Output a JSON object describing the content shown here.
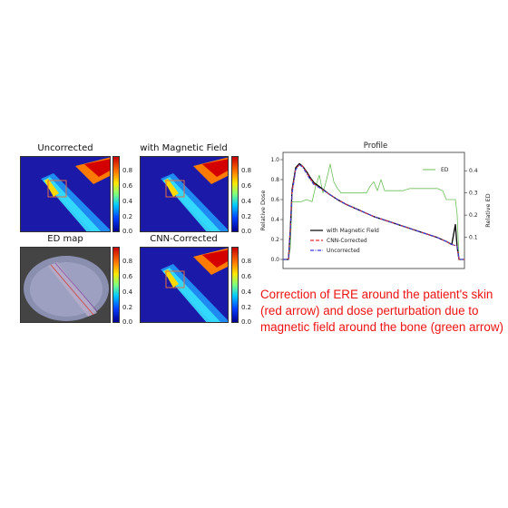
{
  "panels": [
    {
      "title": "Uncorrected",
      "colorbar_ticks": [
        "0.8",
        "0.6",
        "0.4",
        "0.2",
        "0.0"
      ]
    },
    {
      "title": "with Magnetic Field",
      "colorbar_ticks": [
        "0.8",
        "0.6",
        "0.4",
        "0.2",
        "0.0"
      ]
    },
    {
      "title": "ED map",
      "colorbar_ticks": [
        "0.8",
        "0.6",
        "0.4",
        "0.2",
        "0.0"
      ]
    },
    {
      "title": "CNN-Corrected",
      "colorbar_ticks": [
        "0.8",
        "0.6",
        "0.4",
        "0.2",
        "0.0"
      ]
    }
  ],
  "caption": "Correction of ERE around the patient's skin (red arrow) and dose perturbation due to magnetic field around the bone (green arrow)",
  "colors": {
    "with_magnetic_field": "#000000",
    "cnn_corrected": "#e8322e",
    "uncorrected": "#3b3bd6",
    "ed": "#6cbf5a",
    "caption": "#ee1111"
  },
  "chart_data": {
    "type": "line",
    "title": "Profile",
    "xlabel": "",
    "ylabel": "Relative Dose",
    "y2label": "Relative ED",
    "ylim": [
      0.0,
      1.0
    ],
    "y2lim": [
      0.0,
      0.45
    ],
    "yticks": [
      "0.0",
      "0.2",
      "0.4",
      "0.6",
      "0.8",
      "1.0"
    ],
    "y2ticks": [
      "0.1",
      "0.2",
      "0.3",
      "0.4"
    ],
    "xlim": [
      0,
      100
    ],
    "grid": false,
    "legend_position": "lower-left",
    "series": [
      {
        "name": "with Magnetic Field",
        "axis": "left",
        "style": "solid",
        "x": [
          0,
          3,
          4,
          5,
          7,
          9,
          11,
          13,
          15,
          17,
          20,
          25,
          30,
          35,
          40,
          45,
          50,
          55,
          60,
          65,
          70,
          75,
          80,
          85,
          90,
          93,
          95,
          96,
          97,
          98,
          100
        ],
        "y": [
          0.0,
          0.0,
          0.3,
          0.7,
          0.92,
          0.96,
          0.93,
          0.88,
          0.82,
          0.77,
          0.73,
          0.66,
          0.6,
          0.55,
          0.51,
          0.47,
          0.43,
          0.4,
          0.37,
          0.34,
          0.31,
          0.28,
          0.25,
          0.22,
          0.18,
          0.15,
          0.35,
          0.12,
          0.0,
          0.0,
          0.0
        ]
      },
      {
        "name": "CNN-Corrected",
        "axis": "left",
        "style": "dash",
        "x": [
          0,
          3,
          4,
          5,
          7,
          9,
          11,
          13,
          15,
          17,
          20,
          25,
          30,
          35,
          40,
          45,
          50,
          55,
          60,
          65,
          70,
          75,
          80,
          85,
          90,
          93,
          95,
          96,
          97,
          98,
          100
        ],
        "y": [
          0.0,
          0.0,
          0.28,
          0.68,
          0.91,
          0.95,
          0.93,
          0.87,
          0.81,
          0.76,
          0.72,
          0.66,
          0.6,
          0.55,
          0.51,
          0.47,
          0.43,
          0.4,
          0.37,
          0.34,
          0.31,
          0.28,
          0.25,
          0.22,
          0.18,
          0.15,
          0.14,
          0.13,
          0.0,
          0.0,
          0.0
        ]
      },
      {
        "name": "Uncorrected",
        "axis": "left",
        "style": "dashdot",
        "x": [
          0,
          3,
          4,
          5,
          7,
          9,
          11,
          13,
          15,
          17,
          20,
          25,
          30,
          35,
          40,
          45,
          50,
          55,
          60,
          65,
          70,
          75,
          80,
          85,
          90,
          93,
          95,
          96,
          97,
          98,
          100
        ],
        "y": [
          0.0,
          0.0,
          0.27,
          0.66,
          0.9,
          0.95,
          0.92,
          0.86,
          0.8,
          0.75,
          0.72,
          0.66,
          0.6,
          0.55,
          0.51,
          0.47,
          0.43,
          0.4,
          0.37,
          0.34,
          0.31,
          0.28,
          0.25,
          0.22,
          0.18,
          0.15,
          0.14,
          0.13,
          0.0,
          0.0,
          0.0
        ]
      },
      {
        "name": "ED",
        "axis": "right",
        "style": "solid",
        "x": [
          0,
          3,
          4,
          5,
          7,
          10,
          13,
          16,
          18,
          20,
          22,
          24,
          26,
          28,
          30,
          32,
          34,
          38,
          42,
          46,
          48,
          50,
          52,
          54,
          56,
          60,
          66,
          70,
          75,
          80,
          85,
          88,
          90,
          93,
          95,
          96,
          97,
          100
        ],
        "y": [
          0.0,
          0.0,
          0.05,
          0.26,
          0.26,
          0.26,
          0.27,
          0.26,
          0.33,
          0.38,
          0.3,
          0.36,
          0.43,
          0.35,
          0.32,
          0.3,
          0.3,
          0.3,
          0.3,
          0.3,
          0.33,
          0.35,
          0.31,
          0.36,
          0.31,
          0.31,
          0.31,
          0.32,
          0.32,
          0.32,
          0.32,
          0.31,
          0.27,
          0.27,
          0.27,
          0.2,
          0.0,
          0.0
        ]
      }
    ]
  }
}
